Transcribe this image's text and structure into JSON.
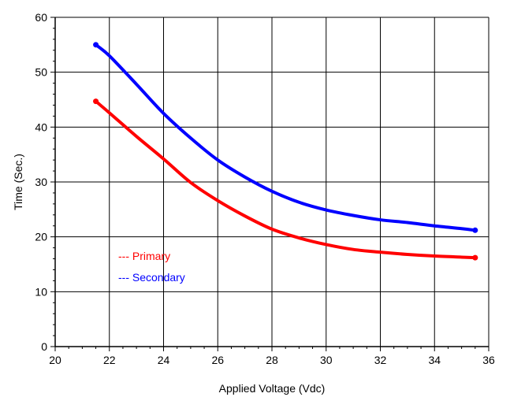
{
  "chart_data": {
    "type": "line",
    "xlabel": "Applied Voltage (Vdc)",
    "ylabel": "Time (Sec.)",
    "xlim": [
      20,
      36
    ],
    "ylim": [
      0,
      60
    ],
    "x_ticks": [
      20,
      22,
      24,
      26,
      28,
      30,
      32,
      34,
      36
    ],
    "y_ticks": [
      0,
      10,
      20,
      30,
      40,
      50,
      60
    ],
    "grid": true,
    "legend_position": "lower-left",
    "series": [
      {
        "name": "Primary",
        "legend_label": "--- Primary",
        "color": "#ff0000",
        "x": [
          21.5,
          22,
          23,
          24,
          25,
          26,
          27,
          28,
          29,
          30,
          31,
          32,
          33,
          34,
          35,
          35.5
        ],
        "y": [
          44.7,
          42.6,
          38.3,
          34.2,
          29.9,
          26.6,
          23.8,
          21.4,
          19.8,
          18.6,
          17.7,
          17.2,
          16.8,
          16.5,
          16.3,
          16.2
        ]
      },
      {
        "name": "Secondary",
        "legend_label": "--- Secondary",
        "color": "#0000ff",
        "x": [
          21.5,
          22,
          23,
          24,
          25,
          26,
          27,
          28,
          29,
          30,
          31,
          32,
          33,
          34,
          35,
          35.5
        ],
        "y": [
          55.0,
          53.0,
          47.8,
          42.5,
          38.0,
          34.0,
          30.9,
          28.3,
          26.3,
          24.9,
          23.9,
          23.1,
          22.6,
          22.0,
          21.5,
          21.2
        ]
      }
    ]
  }
}
